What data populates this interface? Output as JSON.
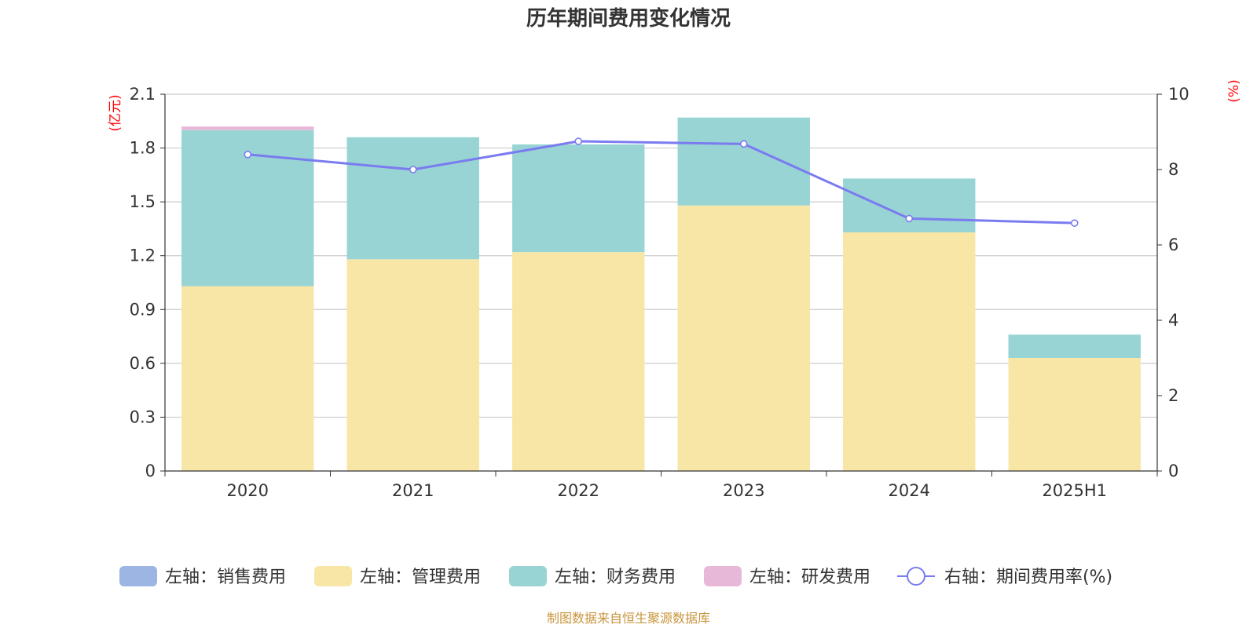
{
  "chart_data": {
    "type": "bar",
    "title": "历年期间费用变化情况",
    "left_axis_unit": "(亿元)",
    "right_axis_unit": "(%)",
    "categories": [
      "2020",
      "2021",
      "2022",
      "2023",
      "2024",
      "2025H1"
    ],
    "left_ylim": [
      0,
      2.1
    ],
    "left_ticks": [
      "0",
      "0.3",
      "0.6",
      "0.9",
      "1.2",
      "1.5",
      "1.8",
      "2.1"
    ],
    "right_ylim": [
      0,
      10
    ],
    "right_ticks": [
      "0",
      "2",
      "4",
      "6",
      "8",
      "10"
    ],
    "stacked": true,
    "grid": true,
    "legend_position": "bottom",
    "series": [
      {
        "name": "左轴：销售费用",
        "type": "bar",
        "axis": "left",
        "color": "#9db5e2",
        "values": [
          0,
          0,
          0,
          0,
          0,
          0
        ]
      },
      {
        "name": "左轴：管理费用",
        "type": "bar",
        "axis": "left",
        "color": "#f7e6a6",
        "values": [
          1.03,
          1.18,
          1.22,
          1.48,
          1.33,
          0.63
        ]
      },
      {
        "name": "左轴：财务费用",
        "type": "bar",
        "axis": "left",
        "color": "#98d4d4",
        "values": [
          0.87,
          0.68,
          0.6,
          0.49,
          0.3,
          0.13
        ]
      },
      {
        "name": "左轴：研发费用",
        "type": "bar",
        "axis": "left",
        "color": "#e8b8d8",
        "values": [
          0.02,
          0,
          0,
          0,
          0,
          0
        ]
      },
      {
        "name": "右轴：期间费用率(%)",
        "type": "line",
        "axis": "right",
        "color": "#7b7bf0",
        "values": [
          8.4,
          8.0,
          8.75,
          8.68,
          6.7,
          6.58
        ]
      }
    ]
  },
  "source_note": "制图数据来自恒生聚源数据库"
}
